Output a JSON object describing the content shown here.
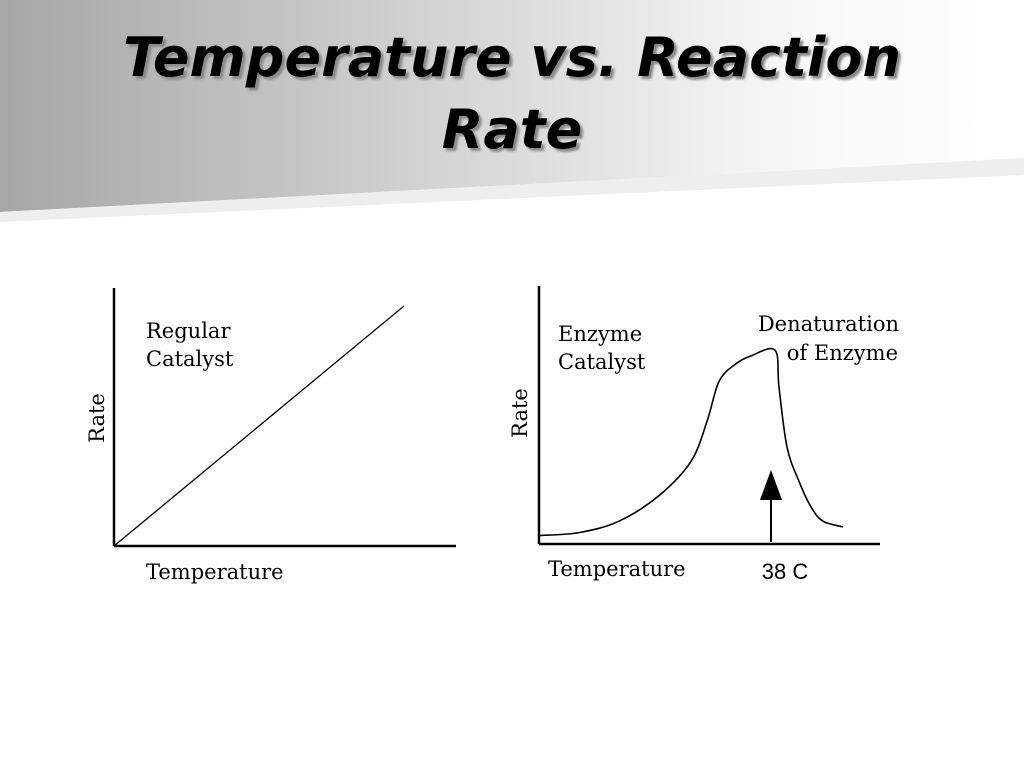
{
  "slide": {
    "title": "Temperature vs. Reaction Rate"
  },
  "chart_data": [
    {
      "type": "line",
      "series": [
        {
          "x": [
            0,
            10
          ],
          "y": [
            0,
            10
          ]
        }
      ],
      "annotations": [
        "Regular",
        "Catalyst"
      ],
      "xlabel": "Temperature",
      "ylabel": "Rate",
      "grid": false
    },
    {
      "type": "line",
      "series": [
        {
          "x": [
            0,
            1,
            2,
            3,
            3.8,
            4.2,
            4.5,
            4.9,
            5.3,
            5.9,
            6.0,
            6.2,
            6.5,
            6.8,
            7.1,
            7.6
          ],
          "y": [
            0.3,
            0.4,
            0.8,
            1.7,
            2.9,
            4.3,
            5.7,
            6.3,
            6.6,
            6.8,
            5.5,
            3.4,
            2.2,
            1.3,
            0.8,
            0.6
          ]
        }
      ],
      "annotations": [
        "Enzyme",
        "Catalyst",
        "Denaturation",
        "of Enzyme"
      ],
      "marker": {
        "label": "38 C",
        "x": 5.8
      },
      "xlabel": "Temperature",
      "ylabel": "Rate",
      "grid": false
    }
  ]
}
